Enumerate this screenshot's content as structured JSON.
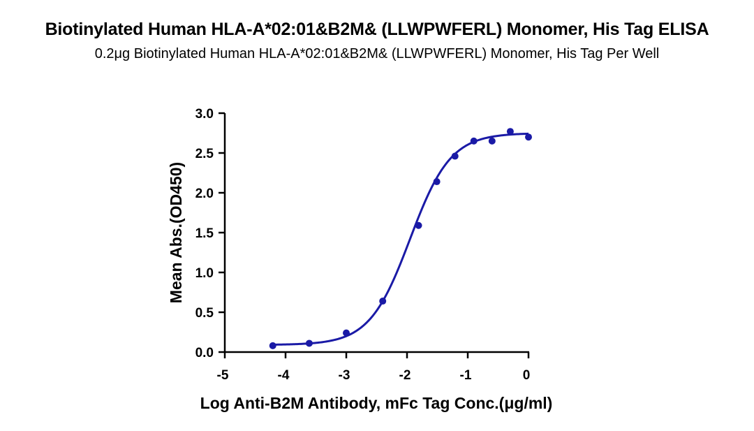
{
  "chart_data": {
    "type": "scatter",
    "title": "Biotinylated Human HLA-A*02:01&B2M& (LLWPWFERL) Monomer, His Tag ELISA",
    "subtitle": "0.2μg Biotinylated Human HLA-A*02:01&B2M& (LLWPWFERL) Monomer, His Tag Per Well",
    "xlabel": "Log Anti-B2M Antibody, mFc Tag Conc.(μg/ml)",
    "ylabel": "Mean Abs.(OD450)",
    "xlim": [
      -5,
      0
    ],
    "ylim": [
      0,
      3.0
    ],
    "x_ticks": [
      "-5",
      "-4",
      "-3",
      "-2",
      "-1",
      "0"
    ],
    "y_ticks": [
      "0.0",
      "0.5",
      "1.0",
      "1.5",
      "2.0",
      "2.5",
      "3.0"
    ],
    "grid": false,
    "color": "#1a1aa6",
    "points": [
      {
        "x": -4.21,
        "y": 0.08
      },
      {
        "x": -3.61,
        "y": 0.11
      },
      {
        "x": -3.0,
        "y": 0.24
      },
      {
        "x": -2.4,
        "y": 0.64
      },
      {
        "x": -1.81,
        "y": 1.59
      },
      {
        "x": -1.51,
        "y": 2.14
      },
      {
        "x": -1.21,
        "y": 2.46
      },
      {
        "x": -0.9,
        "y": 2.65
      },
      {
        "x": -0.6,
        "y": 2.65
      },
      {
        "x": -0.3,
        "y": 2.77
      },
      {
        "x": 0.0,
        "y": 2.7
      }
    ],
    "fit": {
      "model": "4PL",
      "bottom": 0.09,
      "top": 2.75,
      "logEC50": -1.95,
      "hill": 1.3
    }
  }
}
